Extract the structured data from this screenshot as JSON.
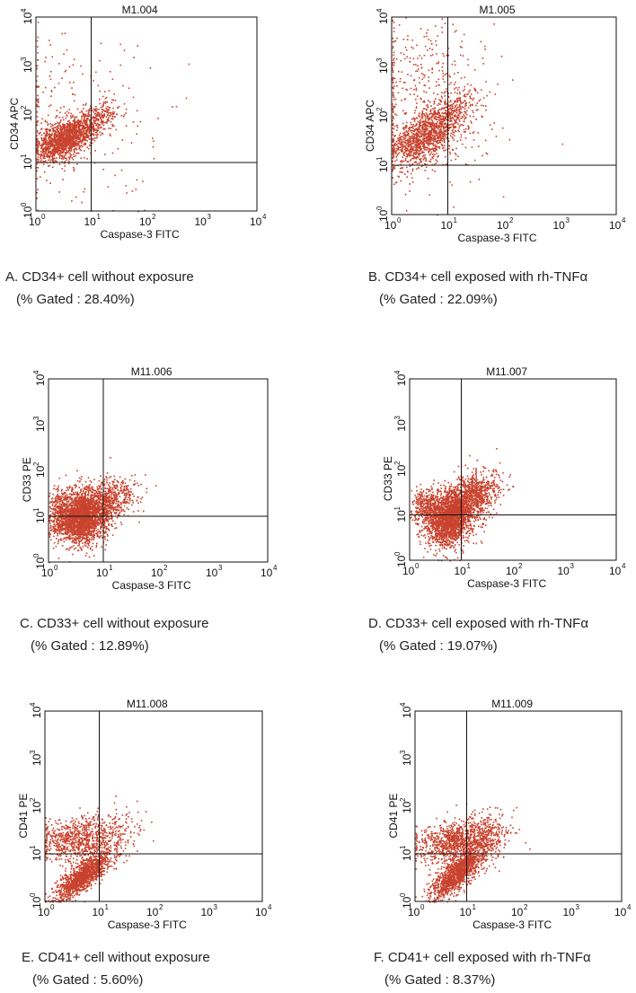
{
  "chart_data": [
    {
      "type": "scatter",
      "id": "A",
      "title": "M1.004",
      "xlabel": "Caspase-3 FITC",
      "ylabel": "CD34 APC",
      "xscale": "log",
      "yscale": "log",
      "xlim": [
        1,
        10000
      ],
      "ylim": [
        1,
        10000
      ],
      "quadrant_gate": {
        "x": 10,
        "y": 10
      },
      "caption": "A. CD34+ cell without exposure",
      "gated_text": "(% Gated : 28.40%)",
      "clusters": [
        {
          "mx": 0.5,
          "my": 1.5,
          "sx": 0.25,
          "sy": 0.22,
          "rho": 0.45,
          "n": 1300
        },
        {
          "mx": 1.0,
          "my": 1.85,
          "sx": 0.25,
          "sy": 0.22,
          "rho": 0.6,
          "n": 400
        },
        {
          "mx": 0.5,
          "my": 2.0,
          "sx": 0.8,
          "sy": 1.0,
          "rho": 0,
          "n": 220
        }
      ]
    },
    {
      "type": "scatter",
      "id": "B",
      "title": "M1.005",
      "xlabel": "Caspase-3 FITC",
      "ylabel": "CD34 APC",
      "xscale": "log",
      "yscale": "log",
      "xlim": [
        1,
        10000
      ],
      "ylim": [
        1,
        10000
      ],
      "quadrant_gate": {
        "x": 10,
        "y": 10
      },
      "caption": "B. CD34+ cell exposed with rh-TNFα",
      "gated_text": "(% Gated : 22.09%)",
      "clusters": [
        {
          "mx": 0.55,
          "my": 1.55,
          "sx": 0.3,
          "sy": 0.3,
          "rho": 0.5,
          "n": 1000
        },
        {
          "mx": 1.0,
          "my": 2.0,
          "sx": 0.28,
          "sy": 0.28,
          "rho": 0.6,
          "n": 350
        },
        {
          "mx": 0.6,
          "my": 2.5,
          "sx": 0.6,
          "sy": 0.9,
          "rho": 0,
          "n": 450
        }
      ]
    },
    {
      "type": "scatter",
      "id": "C",
      "title": "M11.006",
      "xlabel": "Caspase-3 FITC",
      "ylabel": "CD33 PE",
      "xscale": "log",
      "yscale": "log",
      "xlim": [
        1,
        10000
      ],
      "ylim": [
        1,
        10000
      ],
      "quadrant_gate": {
        "x": 10,
        "y": 10
      },
      "caption": "C. CD33+ cell without exposure",
      "gated_text": "(% Gated : 12.89%)",
      "clusters": [
        {
          "mx": 0.6,
          "my": 1.0,
          "sx": 0.22,
          "sy": 0.3,
          "rho": 0.1,
          "n": 2200
        },
        {
          "mx": 1.1,
          "my": 1.35,
          "sx": 0.25,
          "sy": 0.25,
          "rho": 0.4,
          "n": 600
        },
        {
          "mx": 0.2,
          "my": 1.1,
          "sx": 0.1,
          "sy": 0.25,
          "rho": 0,
          "n": 300
        }
      ]
    },
    {
      "type": "scatter",
      "id": "D",
      "title": "M11.007",
      "xlabel": "Caspase-3 FITC",
      "ylabel": "CD33 PE",
      "xscale": "log",
      "yscale": "log",
      "xlim": [
        1,
        10000
      ],
      "ylim": [
        1,
        10000
      ],
      "quadrant_gate": {
        "x": 10,
        "y": 10
      },
      "caption": "D. CD33+ cell exposed with rh-TNFα",
      "gated_text": "(% Gated : 19.07%)",
      "clusters": [
        {
          "mx": 0.75,
          "my": 0.95,
          "sx": 0.22,
          "sy": 0.3,
          "rho": 0.15,
          "n": 2200
        },
        {
          "mx": 1.2,
          "my": 1.4,
          "sx": 0.25,
          "sy": 0.28,
          "rho": 0.4,
          "n": 900
        },
        {
          "mx": 0.3,
          "my": 1.2,
          "sx": 0.12,
          "sy": 0.2,
          "rho": 0,
          "n": 300
        }
      ]
    },
    {
      "type": "scatter",
      "id": "E",
      "title": "M11.008",
      "xlabel": "Caspase-3 FITC",
      "ylabel": "CD41 PE",
      "xscale": "log",
      "yscale": "log",
      "xlim": [
        1,
        10000
      ],
      "ylim": [
        1,
        10000
      ],
      "quadrant_gate": {
        "x": 10,
        "y": 10
      },
      "caption": "E. CD41+ cell without exposure",
      "gated_text": "(% Gated : 5.60%)",
      "clusters": [
        {
          "mx": 0.7,
          "my": 0.55,
          "sx": 0.25,
          "sy": 0.25,
          "rho": 0.8,
          "n": 1300
        },
        {
          "mx": 0.6,
          "my": 1.3,
          "sx": 0.35,
          "sy": 0.22,
          "rho": 0.1,
          "n": 700
        },
        {
          "mx": 1.2,
          "my": 1.4,
          "sx": 0.3,
          "sy": 0.3,
          "rho": 0.3,
          "n": 200
        }
      ]
    },
    {
      "type": "scatter",
      "id": "F",
      "title": "M11.009",
      "xlabel": "Caspase-3 FITC",
      "ylabel": "CD41 PE",
      "xscale": "log",
      "yscale": "log",
      "xlim": [
        1,
        10000
      ],
      "ylim": [
        1,
        10000
      ],
      "quadrant_gate": {
        "x": 10,
        "y": 10
      },
      "caption": "F. CD41+ cell exposed with rh-TNFα",
      "gated_text": "(% Gated : 8.37%)",
      "clusters": [
        {
          "mx": 0.8,
          "my": 0.6,
          "sx": 0.25,
          "sy": 0.25,
          "rho": 0.75,
          "n": 1300
        },
        {
          "mx": 0.8,
          "my": 1.25,
          "sx": 0.4,
          "sy": 0.22,
          "rho": 0.1,
          "n": 900
        },
        {
          "mx": 1.3,
          "my": 1.4,
          "sx": 0.3,
          "sy": 0.3,
          "rho": 0.3,
          "n": 300
        }
      ]
    }
  ]
}
